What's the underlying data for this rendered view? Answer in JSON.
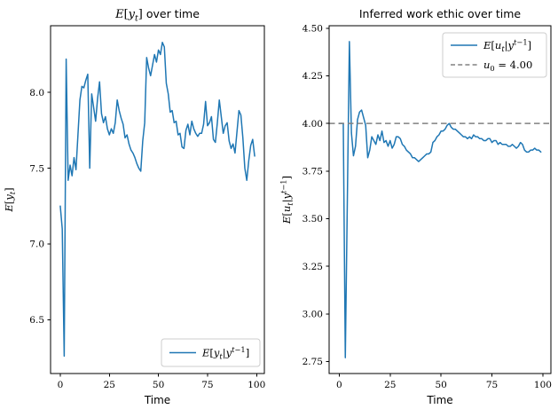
{
  "figure": {
    "background": "#ffffff"
  },
  "colors": {
    "series_blue": "#1f77b4",
    "dashed_gray": "#808080",
    "spine": "#000000",
    "text": "#000000",
    "legend_border": "#cccccc",
    "legend_bg": "#ffffff"
  },
  "chart_data": [
    {
      "type": "line",
      "title": {
        "math": "E[y_t]",
        "plain": " over time"
      },
      "xlabel": "Time",
      "ylabel_math": "E[y_t]",
      "xlim": [
        -4.95,
        103.95
      ],
      "ylim": [
        6.145,
        8.44
      ],
      "xticks": [
        0,
        25,
        50,
        75,
        100
      ],
      "xtick_labels": [
        "0",
        "25",
        "50",
        "75",
        "100"
      ],
      "yticks": [
        6.5,
        7.0,
        7.5,
        8.0
      ],
      "ytick_labels": [
        "6.5",
        "7.0",
        "7.5",
        "8.0"
      ],
      "grid": false,
      "legend": {
        "position": "lower right",
        "entries": [
          {
            "label_math": "E[y_t|y^{t-1}]",
            "dash": false,
            "color": "#1f77b4"
          }
        ]
      },
      "x_start": 0,
      "x_step": 1,
      "series": [
        {
          "name_math": "E[y_t|y^{t-1}]",
          "color": "#1f77b4",
          "values": [
            7.25,
            7.1,
            6.26,
            8.22,
            7.42,
            7.52,
            7.45,
            7.57,
            7.49,
            7.72,
            7.95,
            8.04,
            8.03,
            8.08,
            8.12,
            7.5,
            7.99,
            7.9,
            7.81,
            7.96,
            8.07,
            7.86,
            7.8,
            7.84,
            7.76,
            7.72,
            7.76,
            7.73,
            7.8,
            7.95,
            7.88,
            7.83,
            7.79,
            7.7,
            7.72,
            7.66,
            7.62,
            7.6,
            7.57,
            7.53,
            7.5,
            7.48,
            7.68,
            7.8,
            8.23,
            8.16,
            8.11,
            8.18,
            8.25,
            8.2,
            8.28,
            8.25,
            8.33,
            8.3,
            8.06,
            7.99,
            7.87,
            7.88,
            7.8,
            7.81,
            7.72,
            7.73,
            7.64,
            7.63,
            7.75,
            7.79,
            7.72,
            7.81,
            7.76,
            7.73,
            7.71,
            7.73,
            7.73,
            7.79,
            7.94,
            7.78,
            7.8,
            7.84,
            7.69,
            7.67,
            7.8,
            7.95,
            7.84,
            7.73,
            7.78,
            7.8,
            7.68,
            7.63,
            7.66,
            7.6,
            7.74,
            7.88,
            7.85,
            7.7,
            7.5,
            7.42,
            7.55,
            7.65,
            7.69,
            7.58
          ]
        }
      ]
    },
    {
      "type": "line",
      "title": {
        "math": "",
        "plain": "Inferred work ethic over time"
      },
      "xlabel": "Time",
      "ylabel_math": "E[u_t|y^{t-1}]",
      "xlim": [
        -4.95,
        103.95
      ],
      "ylim": [
        2.687,
        4.513
      ],
      "xticks": [
        0,
        25,
        50,
        75,
        100
      ],
      "xtick_labels": [
        "0",
        "25",
        "50",
        "75",
        "100"
      ],
      "yticks": [
        2.75,
        3.0,
        3.25,
        3.5,
        3.75,
        4.0,
        4.25,
        4.5
      ],
      "ytick_labels": [
        "2.75",
        "3.00",
        "3.25",
        "3.50",
        "3.75",
        "4.00",
        "4.25",
        "4.50"
      ],
      "grid": false,
      "hline": {
        "value": 4.0,
        "color": "#808080",
        "dash": true,
        "label_math": "u_0 = 4.00"
      },
      "legend": {
        "position": "upper right",
        "entries": [
          {
            "label_math": "E[u_t|y^{t-1}]",
            "dash": false,
            "color": "#1f77b4"
          },
          {
            "label_math": "u_0 = 4.00",
            "dash": true,
            "color": "#808080"
          }
        ]
      },
      "x_start": 0,
      "x_step": 1,
      "series": [
        {
          "name_math": "E[u_t|y^{t-1}]",
          "color": "#1f77b4",
          "values": [
            4.0,
            4.0,
            4.0,
            2.77,
            3.6,
            4.43,
            3.95,
            3.83,
            3.88,
            4.02,
            4.06,
            4.07,
            4.03,
            3.99,
            3.82,
            3.86,
            3.93,
            3.91,
            3.89,
            3.94,
            3.91,
            3.96,
            3.9,
            3.91,
            3.88,
            3.91,
            3.87,
            3.89,
            3.93,
            3.93,
            3.92,
            3.89,
            3.88,
            3.86,
            3.85,
            3.84,
            3.82,
            3.82,
            3.81,
            3.8,
            3.81,
            3.82,
            3.83,
            3.84,
            3.84,
            3.85,
            3.9,
            3.91,
            3.93,
            3.94,
            3.96,
            3.96,
            3.97,
            3.99,
            4.0,
            3.98,
            3.97,
            3.97,
            3.96,
            3.95,
            3.94,
            3.93,
            3.93,
            3.92,
            3.93,
            3.92,
            3.94,
            3.93,
            3.93,
            3.92,
            3.92,
            3.91,
            3.91,
            3.92,
            3.92,
            3.9,
            3.91,
            3.91,
            3.89,
            3.9,
            3.89,
            3.89,
            3.89,
            3.88,
            3.88,
            3.89,
            3.88,
            3.87,
            3.88,
            3.9,
            3.89,
            3.86,
            3.85,
            3.85,
            3.86,
            3.86,
            3.87,
            3.86,
            3.86,
            3.85
          ]
        }
      ]
    }
  ]
}
